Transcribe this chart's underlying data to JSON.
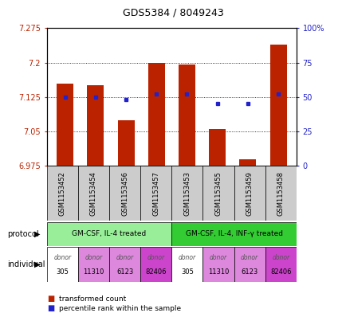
{
  "title": "GDS5384 / 8049243",
  "samples": [
    "GSM1153452",
    "GSM1153454",
    "GSM1153456",
    "GSM1153457",
    "GSM1153453",
    "GSM1153455",
    "GSM1153459",
    "GSM1153458"
  ],
  "transformed_counts": [
    7.155,
    7.15,
    7.075,
    7.2,
    7.195,
    7.055,
    6.99,
    7.24
  ],
  "percentile_ranks": [
    50,
    50,
    48,
    52,
    52,
    45,
    45,
    52
  ],
  "ylim": [
    6.975,
    7.275
  ],
  "ylim_right": [
    0,
    100
  ],
  "yticks_left": [
    6.975,
    7.05,
    7.125,
    7.2,
    7.275
  ],
  "yticks_right": [
    0,
    25,
    50,
    75,
    100
  ],
  "ytick_labels_left": [
    "6.975",
    "7.05",
    "7.125",
    "7.2",
    "7.275"
  ],
  "ytick_labels_right": [
    "0",
    "25",
    "50",
    "75",
    "100%"
  ],
  "bar_color": "#bb2200",
  "dot_color": "#2222cc",
  "protocol_groups": [
    {
      "label": "GM-CSF, IL-4 treated",
      "start": 0,
      "end": 3,
      "color": "#99ee99"
    },
    {
      "label": "GM-CSF, IL-4, INF-γ treated",
      "start": 4,
      "end": 7,
      "color": "#33cc33"
    }
  ],
  "individuals": [
    {
      "label": "donor\n305",
      "color": "#ffffff"
    },
    {
      "label": "donor\n11310",
      "color": "#dd88dd"
    },
    {
      "label": "donor\n6123",
      "color": "#dd88dd"
    },
    {
      "label": "donor\n82406",
      "color": "#cc44cc"
    },
    {
      "label": "donor\n305",
      "color": "#ffffff"
    },
    {
      "label": "donor\n11310",
      "color": "#dd88dd"
    },
    {
      "label": "donor\n6123",
      "color": "#dd88dd"
    },
    {
      "label": "donor\n82406",
      "color": "#cc44cc"
    }
  ],
  "sample_bg_color": "#cccccc",
  "base_value": 6.975,
  "bar_width": 0.55
}
